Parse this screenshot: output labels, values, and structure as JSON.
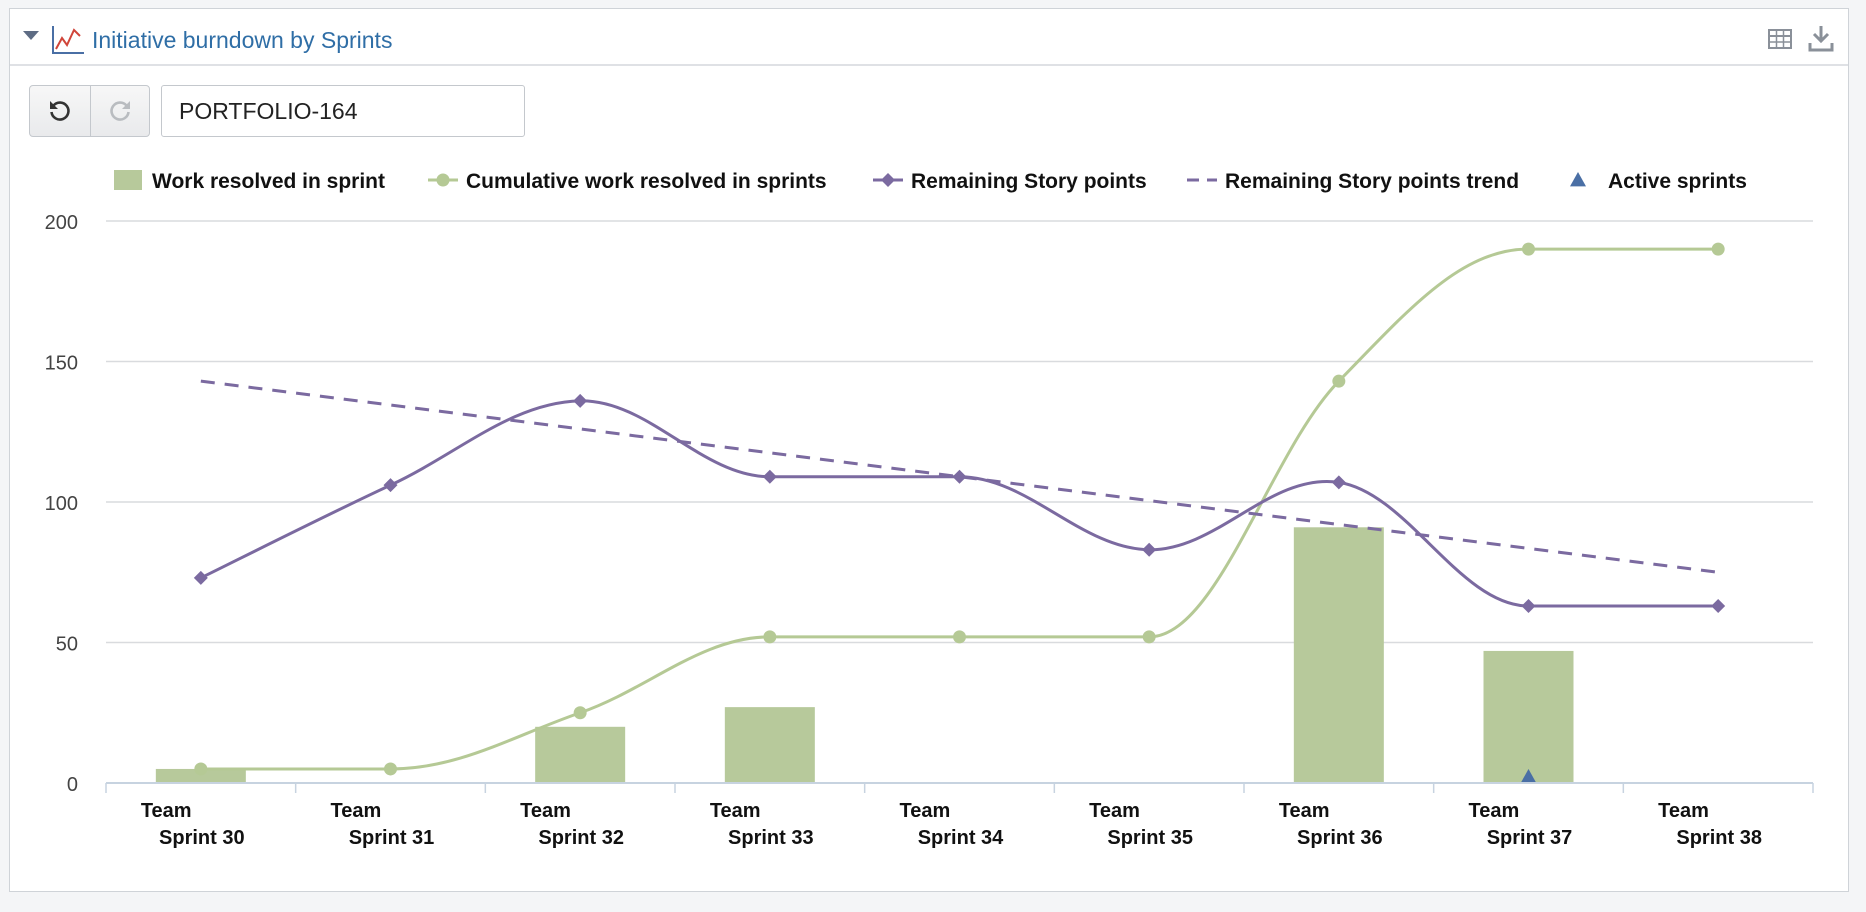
{
  "header": {
    "title": "Initiative burndown by Sprints",
    "icons": [
      "line-chart-icon",
      "table-view-icon",
      "download-icon",
      "collapse-caret-icon"
    ]
  },
  "toolbar": {
    "undo_icon": "undo-icon",
    "redo_icon": "redo-icon",
    "issue_value": "PORTFOLIO-164"
  },
  "chart_data": {
    "type": "bar",
    "categories": [
      [
        "Team",
        "Sprint 30"
      ],
      [
        "Team",
        "Sprint 31"
      ],
      [
        "Team",
        "Sprint 32"
      ],
      [
        "Team",
        "Sprint 33"
      ],
      [
        "Team",
        "Sprint 34"
      ],
      [
        "Team",
        "Sprint 35"
      ],
      [
        "Team",
        "Sprint 36"
      ],
      [
        "Team",
        "Sprint 37"
      ],
      [
        "Team",
        "Sprint 38"
      ]
    ],
    "ylim": [
      0,
      200
    ],
    "yticks": [
      "0",
      "50",
      "100",
      "150",
      "200"
    ],
    "grid": true,
    "legend_position": "top",
    "series": [
      {
        "name": "Work resolved in sprint",
        "kind": "bar",
        "color": "#b7c99b",
        "values": [
          5,
          0,
          20,
          27,
          0,
          0,
          91,
          47,
          0
        ]
      },
      {
        "name": "Cumulative work resolved in sprints",
        "kind": "line",
        "marker": "circle",
        "color": "#b5c995",
        "values": [
          5,
          5,
          25,
          52,
          52,
          52,
          143,
          190,
          190
        ]
      },
      {
        "name": "Remaining Story points",
        "kind": "line",
        "marker": "diamond",
        "color": "#7b6aa0",
        "values": [
          73,
          106,
          136,
          109,
          109,
          83,
          107,
          63,
          63
        ]
      },
      {
        "name": "Remaining Story points trend",
        "kind": "dashed-line",
        "color": "#7b6aa0",
        "values": [
          143,
          null,
          null,
          null,
          null,
          null,
          null,
          null,
          75
        ]
      },
      {
        "name": "Active sprints",
        "kind": "marker",
        "marker": "triangle",
        "color": "#4a6fa5",
        "values": [
          null,
          null,
          null,
          null,
          null,
          null,
          null,
          0,
          null
        ]
      }
    ]
  }
}
